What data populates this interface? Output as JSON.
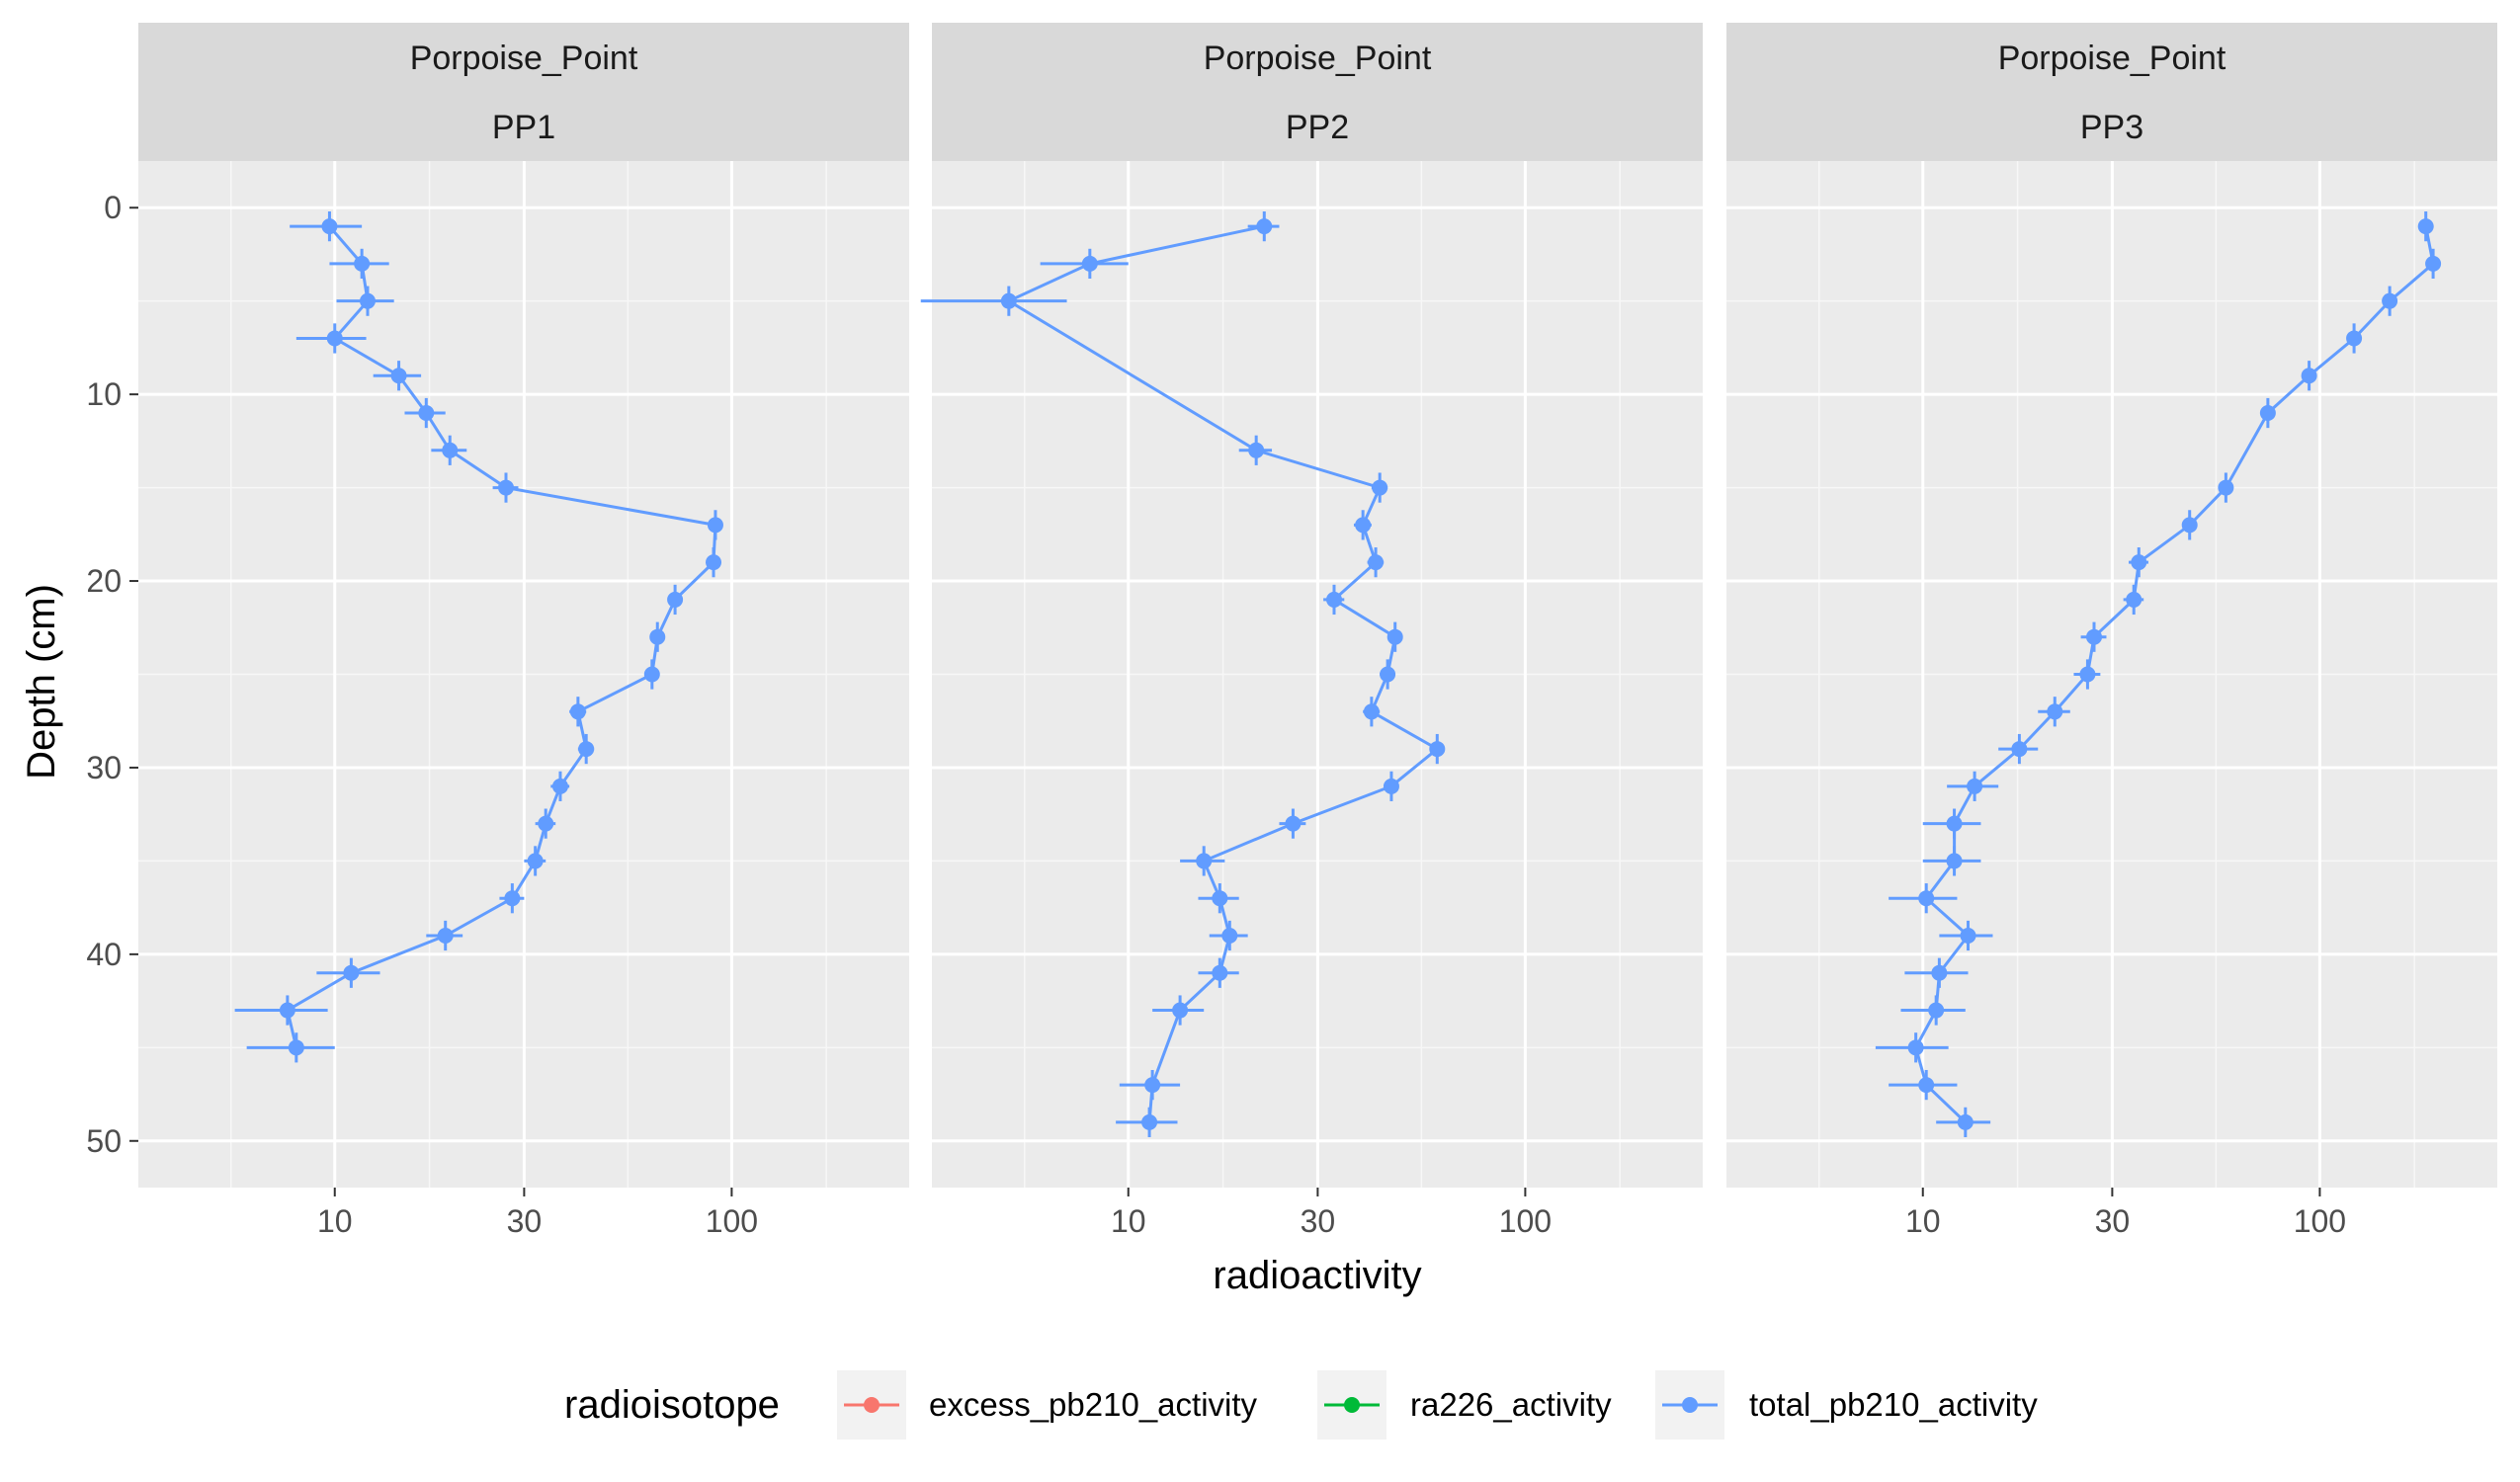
{
  "chart_data": {
    "type": "line",
    "facet_group": "Porpoise_Point",
    "facets": [
      "PP1",
      "PP2",
      "PP3"
    ],
    "xlabel": "radioactivity",
    "ylabel": "Depth (cm)",
    "x_scale": "log10",
    "x_ticks": [
      10,
      30,
      100
    ],
    "x_tick_labels": [
      "10",
      "30",
      "100"
    ],
    "y_reversed": true,
    "y_ticks": [
      0,
      10,
      20,
      30,
      40,
      50
    ],
    "y_tick_labels": [
      "0",
      "10",
      "20",
      "30",
      "40",
      "50"
    ],
    "legend": {
      "title": "radioisotope",
      "position": "bottom",
      "entries": [
        {
          "label": "excess_pb210_activity",
          "color": "#F8766D"
        },
        {
          "label": "ra226_activity",
          "color": "#00BA38"
        },
        {
          "label": "total_pb210_activity",
          "color": "#619CFF"
        }
      ]
    },
    "series": [
      {
        "name": "total_pb210_activity",
        "facet": "PP1",
        "color": "#619CFF",
        "points": [
          {
            "depth": 1,
            "value": 9.7
          },
          {
            "depth": 3,
            "value": 11.7
          },
          {
            "depth": 5,
            "value": 12.1
          },
          {
            "depth": 7,
            "value": 10.0
          },
          {
            "depth": 9,
            "value": 14.5
          },
          {
            "depth": 11,
            "value": 17.0
          },
          {
            "depth": 13,
            "value": 19.5
          },
          {
            "depth": 15,
            "value": 27.0
          },
          {
            "depth": 17,
            "value": 91.0
          },
          {
            "depth": 19,
            "value": 90.0
          },
          {
            "depth": 21,
            "value": 72.0
          },
          {
            "depth": 23,
            "value": 65.0
          },
          {
            "depth": 25,
            "value": 63.0
          },
          {
            "depth": 27,
            "value": 41.0
          },
          {
            "depth": 29,
            "value": 43.0
          },
          {
            "depth": 31,
            "value": 37.0
          },
          {
            "depth": 33,
            "value": 34.0
          },
          {
            "depth": 35,
            "value": 32.0
          },
          {
            "depth": 37,
            "value": 28.0
          },
          {
            "depth": 39,
            "value": 19.0
          },
          {
            "depth": 41,
            "value": 11.0
          },
          {
            "depth": 43,
            "value": 7.6
          },
          {
            "depth": 45,
            "value": 8.0
          }
        ],
        "x_error": 2.0,
        "y_error": 0.8
      },
      {
        "name": "total_pb210_activity",
        "facet": "PP2",
        "color": "#619CFF",
        "points": [
          {
            "depth": 1,
            "value": 22.0
          },
          {
            "depth": 3,
            "value": 8.0
          },
          {
            "depth": 5,
            "value": 5.0
          },
          {
            "depth": 13,
            "value": 21.0
          },
          {
            "depth": 15,
            "value": 43.0
          },
          {
            "depth": 17,
            "value": 39.0
          },
          {
            "depth": 19,
            "value": 42.0
          },
          {
            "depth": 21,
            "value": 33.0
          },
          {
            "depth": 23,
            "value": 47.0
          },
          {
            "depth": 25,
            "value": 45.0
          },
          {
            "depth": 27,
            "value": 41.0
          },
          {
            "depth": 29,
            "value": 60.0
          },
          {
            "depth": 31,
            "value": 46.0
          },
          {
            "depth": 33,
            "value": 26.0
          },
          {
            "depth": 35,
            "value": 15.5
          },
          {
            "depth": 37,
            "value": 17.0
          },
          {
            "depth": 39,
            "value": 18.0
          },
          {
            "depth": 41,
            "value": 17.0
          },
          {
            "depth": 43,
            "value": 13.5
          },
          {
            "depth": 47,
            "value": 11.5
          },
          {
            "depth": 49,
            "value": 11.3
          }
        ],
        "x_error": 2.0,
        "y_error": 0.8
      },
      {
        "name": "total_pb210_activity",
        "facet": "PP3",
        "color": "#619CFF",
        "points": [
          {
            "depth": 1,
            "value": 185.0
          },
          {
            "depth": 3,
            "value": 193.0
          },
          {
            "depth": 5,
            "value": 150.0
          },
          {
            "depth": 7,
            "value": 122.0
          },
          {
            "depth": 9,
            "value": 94.0
          },
          {
            "depth": 11,
            "value": 74.0
          },
          {
            "depth": 15,
            "value": 58.0
          },
          {
            "depth": 17,
            "value": 47.0
          },
          {
            "depth": 19,
            "value": 35.0
          },
          {
            "depth": 21,
            "value": 34.0
          },
          {
            "depth": 23,
            "value": 27.0
          },
          {
            "depth": 25,
            "value": 26.0
          },
          {
            "depth": 27,
            "value": 21.5
          },
          {
            "depth": 29,
            "value": 17.5
          },
          {
            "depth": 31,
            "value": 13.5
          },
          {
            "depth": 33,
            "value": 12.0
          },
          {
            "depth": 35,
            "value": 12.0
          },
          {
            "depth": 37,
            "value": 10.2
          },
          {
            "depth": 39,
            "value": 13.0
          },
          {
            "depth": 41,
            "value": 11.0
          },
          {
            "depth": 43,
            "value": 10.8
          },
          {
            "depth": 45,
            "value": 9.6
          },
          {
            "depth": 47,
            "value": 10.2
          },
          {
            "depth": 49,
            "value": 12.8
          }
        ],
        "x_error": 2.0,
        "y_error": 0.8
      }
    ]
  }
}
